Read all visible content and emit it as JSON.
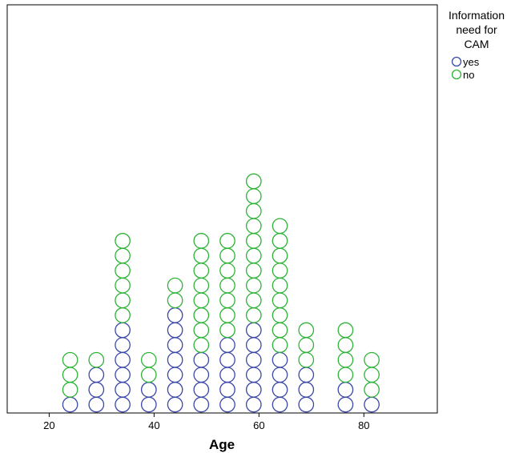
{
  "chart_data": {
    "type": "scatter",
    "subtype": "stacked-dot-plot",
    "title": "",
    "xlabel": "Age",
    "ylabel": "",
    "xlim": [
      12,
      94
    ],
    "xticks": [
      20,
      40,
      60,
      80
    ],
    "grid": false,
    "legend": {
      "title": "Information need for CAM",
      "title_lines": [
        "Information",
        "need for",
        "CAM"
      ],
      "placement": "top-right outside"
    },
    "colors": {
      "yes": "#3a48a8",
      "no": "#2db336"
    },
    "series": [
      {
        "name": "yes",
        "color": "#3a48a8"
      },
      {
        "name": "no",
        "color": "#2db336"
      }
    ],
    "stacks": [
      {
        "x": 24,
        "yes": 1,
        "no": 3
      },
      {
        "x": 29,
        "yes": 3,
        "no": 1
      },
      {
        "x": 34,
        "yes": 6,
        "no": 6
      },
      {
        "x": 39,
        "yes": 2,
        "no": 2
      },
      {
        "x": 44,
        "yes": 7,
        "no": 2
      },
      {
        "x": 49,
        "yes": 4,
        "no": 8
      },
      {
        "x": 54,
        "yes": 5,
        "no": 7
      },
      {
        "x": 59,
        "yes": 6,
        "no": 10
      },
      {
        "x": 64,
        "yes": 4,
        "no": 9
      },
      {
        "x": 69,
        "yes": 3,
        "no": 3
      },
      {
        "x": 76.5,
        "yes": 2,
        "no": 4
      },
      {
        "x": 81.5,
        "yes": 1,
        "no": 3
      }
    ]
  }
}
